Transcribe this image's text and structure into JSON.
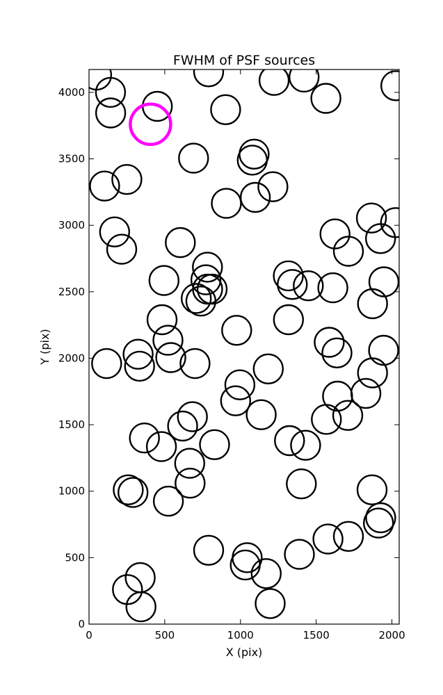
{
  "chart_data": {
    "type": "scatter",
    "title": "FWHM of PSF sources",
    "xlabel": "X (pix)",
    "ylabel": "Y (pix)",
    "xlim": [
      0,
      2048
    ],
    "ylim": [
      0,
      4172
    ],
    "xticks": [
      0,
      500,
      1000,
      1500,
      2000
    ],
    "yticks": [
      0,
      500,
      1000,
      1500,
      2000,
      2500,
      3000,
      3500,
      4000
    ],
    "grid": false,
    "legend": "none",
    "marker": "open-circle",
    "series": [
      {
        "color": "#000000",
        "points": [
          [
            50,
            4130
          ],
          [
            142,
            4000
          ],
          [
            143,
            3845
          ],
          [
            451,
            3895
          ],
          [
            790,
            4155
          ],
          [
            1222,
            4090
          ],
          [
            1420,
            4115
          ],
          [
            1564,
            3955
          ],
          [
            2026,
            4050
          ],
          [
            902,
            3870
          ],
          [
            690,
            3505
          ],
          [
            1090,
            3535
          ],
          [
            1078,
            3490
          ],
          [
            250,
            3345
          ],
          [
            103,
            3295
          ],
          [
            1214,
            3290
          ],
          [
            1098,
            3210
          ],
          [
            907,
            3165
          ],
          [
            169,
            2950
          ],
          [
            216,
            2820
          ],
          [
            603,
            2870
          ],
          [
            1865,
            3055
          ],
          [
            2024,
            3020
          ],
          [
            1624,
            2935
          ],
          [
            1925,
            2900
          ],
          [
            1713,
            2805
          ],
          [
            782,
            2685
          ],
          [
            772,
            2590
          ],
          [
            495,
            2585
          ],
          [
            1316,
            2620
          ],
          [
            1342,
            2555
          ],
          [
            1448,
            2545
          ],
          [
            1610,
            2530
          ],
          [
            1947,
            2575
          ],
          [
            813,
            2520
          ],
          [
            783,
            2520
          ],
          [
            708,
            2450
          ],
          [
            739,
            2430
          ],
          [
            1872,
            2410
          ],
          [
            482,
            2290
          ],
          [
            1317,
            2290
          ],
          [
            975,
            2210
          ],
          [
            1586,
            2120
          ],
          [
            521,
            2135
          ],
          [
            1637,
            2040
          ],
          [
            1945,
            2060
          ],
          [
            324,
            2030
          ],
          [
            540,
            2005
          ],
          [
            116,
            1960
          ],
          [
            334,
            1940
          ],
          [
            700,
            1960
          ],
          [
            1184,
            1920
          ],
          [
            1872,
            1890
          ],
          [
            996,
            1800
          ],
          [
            968,
            1680
          ],
          [
            1641,
            1715
          ],
          [
            1828,
            1735
          ],
          [
            1137,
            1575
          ],
          [
            1708,
            1570
          ],
          [
            1567,
            1540
          ],
          [
            683,
            1560
          ],
          [
            618,
            1490
          ],
          [
            366,
            1400
          ],
          [
            478,
            1335
          ],
          [
            829,
            1350
          ],
          [
            1324,
            1380
          ],
          [
            1430,
            1345
          ],
          [
            665,
            1210
          ],
          [
            667,
            1060
          ],
          [
            1402,
            1055
          ],
          [
            259,
            1010
          ],
          [
            290,
            990
          ],
          [
            524,
            925
          ],
          [
            1869,
            1010
          ],
          [
            1926,
            800
          ],
          [
            1911,
            760
          ],
          [
            790,
            555
          ],
          [
            1389,
            525
          ],
          [
            1578,
            640
          ],
          [
            1713,
            660
          ],
          [
            1044,
            500
          ],
          [
            1032,
            445
          ],
          [
            1170,
            380
          ],
          [
            338,
            350
          ],
          [
            254,
            260
          ],
          [
            343,
            130
          ],
          [
            1196,
            155
          ]
        ]
      },
      {
        "color": "#ff00ff",
        "points": [
          [
            406,
            3760
          ]
        ]
      }
    ]
  }
}
